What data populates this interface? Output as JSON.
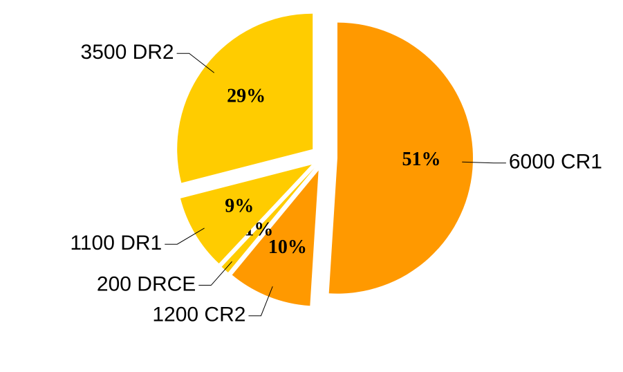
{
  "chart_data": {
    "type": "pie",
    "categories": [
      "6000 CR1",
      "1200 CR2",
      "200 DRCE",
      "1100 DR1",
      "3500 DR2"
    ],
    "values": [
      51,
      10,
      1,
      9,
      29
    ],
    "value_labels": [
      "51%",
      "10%",
      "1%",
      "9%",
      "29%"
    ],
    "colors": [
      "#ff9900",
      "#ff9900",
      "#ffcc00",
      "#ffcc00",
      "#ffcc00"
    ]
  }
}
